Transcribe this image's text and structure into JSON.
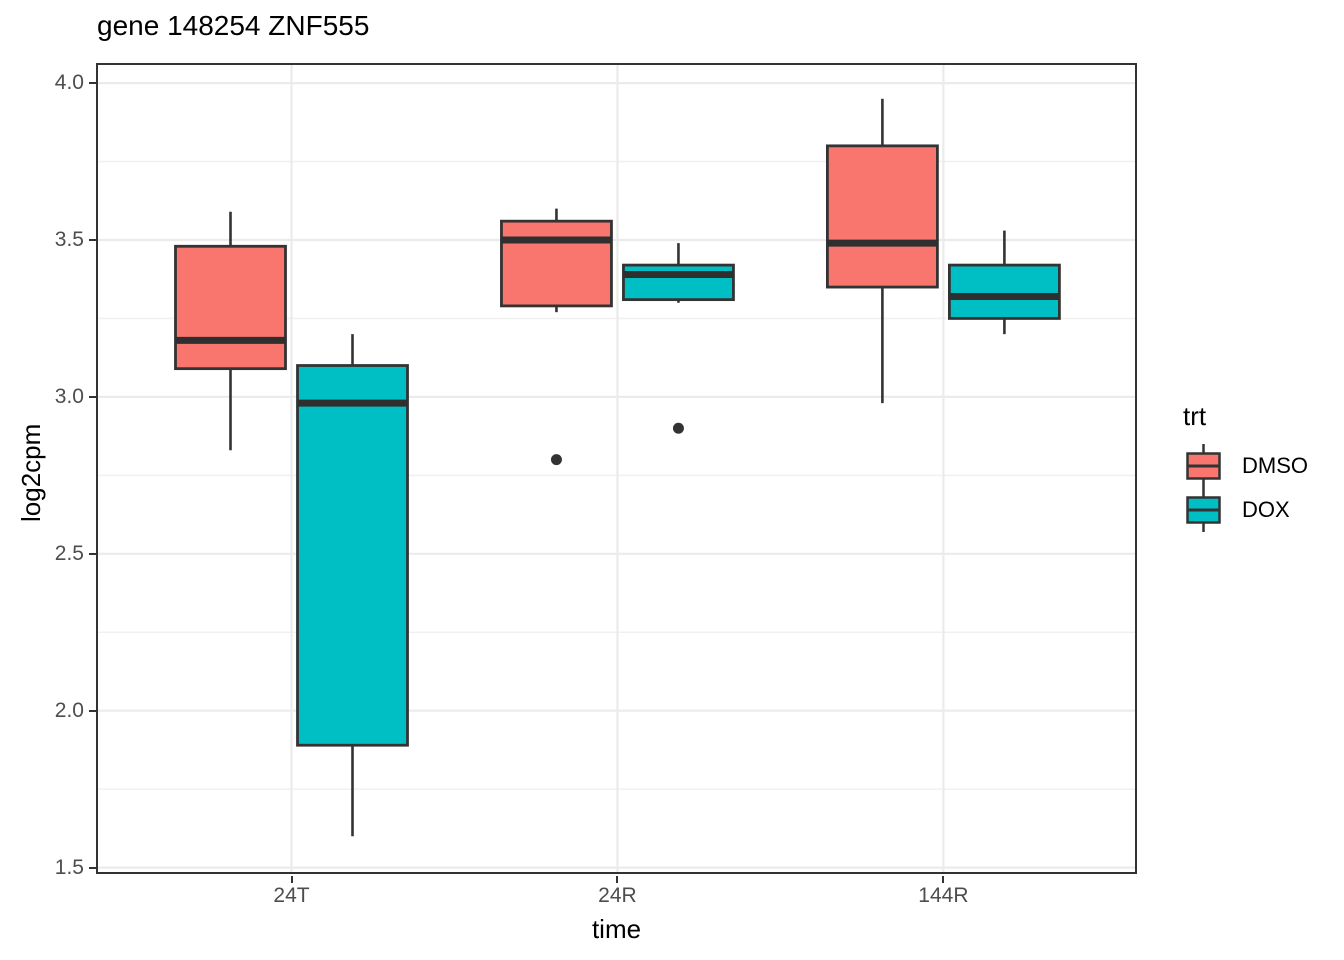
{
  "chart_data": {
    "type": "boxplot",
    "title": "gene 148254 ZNF555",
    "xlabel": "time",
    "ylabel": "log2cpm",
    "categories": [
      "24T",
      "24R",
      "144R"
    ],
    "yticks": [
      1.5,
      2.0,
      2.5,
      3.0,
      3.5,
      4.0
    ],
    "ylim": [
      1.48,
      4.06
    ],
    "grid": "major-and-minor-horizontal, major-vertical-at-categories",
    "legend": {
      "title": "trt",
      "position": "right",
      "entries": [
        {
          "label": "DMSO",
          "color": "#F8766D"
        },
        {
          "label": "DOX",
          "color": "#00BFC4"
        }
      ]
    },
    "series": [
      {
        "name": "DMSO",
        "color": "#F8766D",
        "boxes": [
          {
            "category": "24T",
            "min": 2.83,
            "q1": 3.09,
            "median": 3.18,
            "q3": 3.48,
            "max": 3.59,
            "outliers": []
          },
          {
            "category": "24R",
            "min": 3.27,
            "q1": 3.29,
            "median": 3.5,
            "q3": 3.56,
            "max": 3.6,
            "outliers": [
              2.8
            ]
          },
          {
            "category": "144R",
            "min": 2.98,
            "q1": 3.35,
            "median": 3.49,
            "q3": 3.8,
            "max": 3.95,
            "outliers": []
          }
        ]
      },
      {
        "name": "DOX",
        "color": "#00BFC4",
        "boxes": [
          {
            "category": "24T",
            "min": 1.6,
            "q1": 1.89,
            "median": 2.98,
            "q3": 3.1,
            "max": 3.2,
            "outliers": []
          },
          {
            "category": "24R",
            "min": 3.3,
            "q1": 3.31,
            "median": 3.39,
            "q3": 3.42,
            "max": 3.49,
            "outliers": [
              2.9
            ]
          },
          {
            "category": "144R",
            "min": 3.2,
            "q1": 3.25,
            "median": 3.32,
            "q3": 3.42,
            "max": 3.53,
            "outliers": []
          }
        ]
      }
    ],
    "colors": {
      "box_border": "#333333",
      "median_line": "#2f2f2f",
      "outlier": "#333333",
      "grid_major": "#ebebeb",
      "grid_minor": "#f0f0f0",
      "tick_text": "#4d4d4d",
      "panel_border": "#333333"
    }
  }
}
